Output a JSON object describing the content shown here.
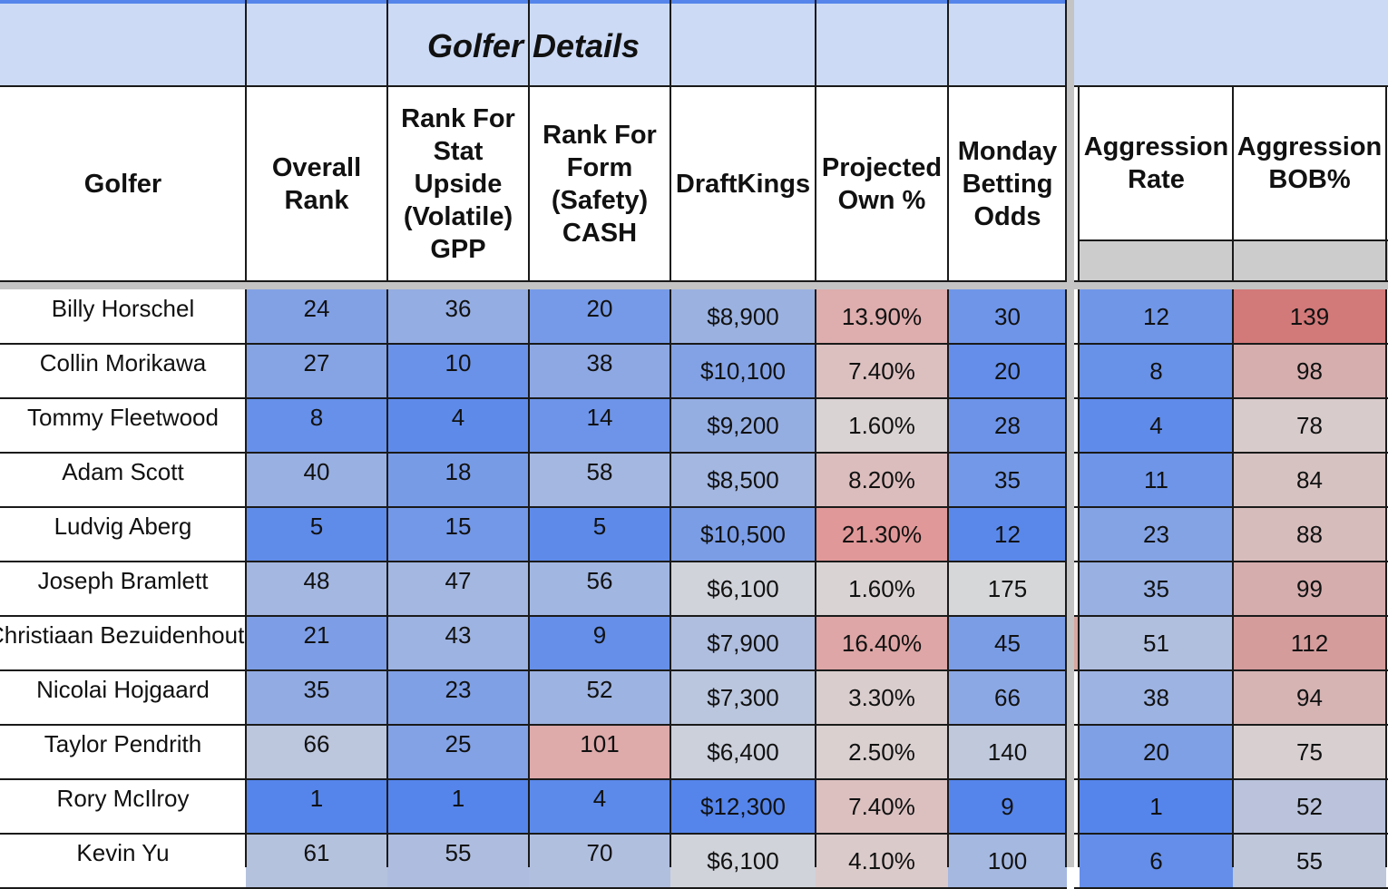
{
  "sheet": {
    "section_title": "Golfer Details",
    "headers": {
      "golfer": "Golfer",
      "overall_rank": "Overall Rank",
      "rank_stat_upside": "Rank For Stat Upside (Volatile) GPP",
      "rank_form_safety": "Rank For Form (Safety) CASH",
      "draftkings": "DraftKings",
      "projected_own": "Projected Own %",
      "monday_odds": "Monday Betting Odds",
      "aggression_rate": "Aggression Rate",
      "aggression_bob": "Aggression BOB%"
    },
    "rows": [
      {
        "golfer": "Billy Horschel",
        "overall": "24",
        "stat": "36",
        "form": "20",
        "dk": "$8,900",
        "own": "13.90%",
        "odds": "30",
        "agg_rate": "12",
        "agg_bob": "139"
      },
      {
        "golfer": "Collin Morikawa",
        "overall": "27",
        "stat": "10",
        "form": "38",
        "dk": "$10,100",
        "own": "7.40%",
        "odds": "20",
        "agg_rate": "8",
        "agg_bob": "98"
      },
      {
        "golfer": "Tommy Fleetwood",
        "overall": "8",
        "stat": "4",
        "form": "14",
        "dk": "$9,200",
        "own": "1.60%",
        "odds": "28",
        "agg_rate": "4",
        "agg_bob": "78"
      },
      {
        "golfer": "Adam Scott",
        "overall": "40",
        "stat": "18",
        "form": "58",
        "dk": "$8,500",
        "own": "8.20%",
        "odds": "35",
        "agg_rate": "11",
        "agg_bob": "84"
      },
      {
        "golfer": "Ludvig Aberg",
        "overall": "5",
        "stat": "15",
        "form": "5",
        "dk": "$10,500",
        "own": "21.30%",
        "odds": "12",
        "agg_rate": "23",
        "agg_bob": "88"
      },
      {
        "golfer": "Joseph Bramlett",
        "overall": "48",
        "stat": "47",
        "form": "56",
        "dk": "$6,100",
        "own": "1.60%",
        "odds": "175",
        "agg_rate": "35",
        "agg_bob": "99"
      },
      {
        "golfer": "Christiaan Bezuidenhout",
        "overall": "21",
        "stat": "43",
        "form": "9",
        "dk": "$7,900",
        "own": "16.40%",
        "odds": "45",
        "agg_rate": "51",
        "agg_bob": "112"
      },
      {
        "golfer": "Nicolai Hojgaard",
        "overall": "35",
        "stat": "23",
        "form": "52",
        "dk": "$7,300",
        "own": "3.30%",
        "odds": "66",
        "agg_rate": "38",
        "agg_bob": "94"
      },
      {
        "golfer": "Taylor Pendrith",
        "overall": "66",
        "stat": "25",
        "form": "101",
        "dk": "$6,400",
        "own": "2.50%",
        "odds": "140",
        "agg_rate": "20",
        "agg_bob": "75"
      },
      {
        "golfer": "Rory McIlroy",
        "overall": "1",
        "stat": "1",
        "form": "4",
        "dk": "$12,300",
        "own": "7.40%",
        "odds": "9",
        "agg_rate": "1",
        "agg_bob": "52"
      },
      {
        "golfer": "Kevin Yu",
        "overall": "61",
        "stat": "55",
        "form": "70",
        "dk": "$6,100",
        "own": "4.10%",
        "odds": "100",
        "agg_rate": "6",
        "agg_bob": "55"
      }
    ],
    "colors": {
      "band_blue": "#ccdaf5",
      "strong_blue": "#5585eb",
      "neutral_gray": "#d9d9d9",
      "strong_red": "#e09696",
      "frozen_divider": "#c4c4c4"
    }
  }
}
